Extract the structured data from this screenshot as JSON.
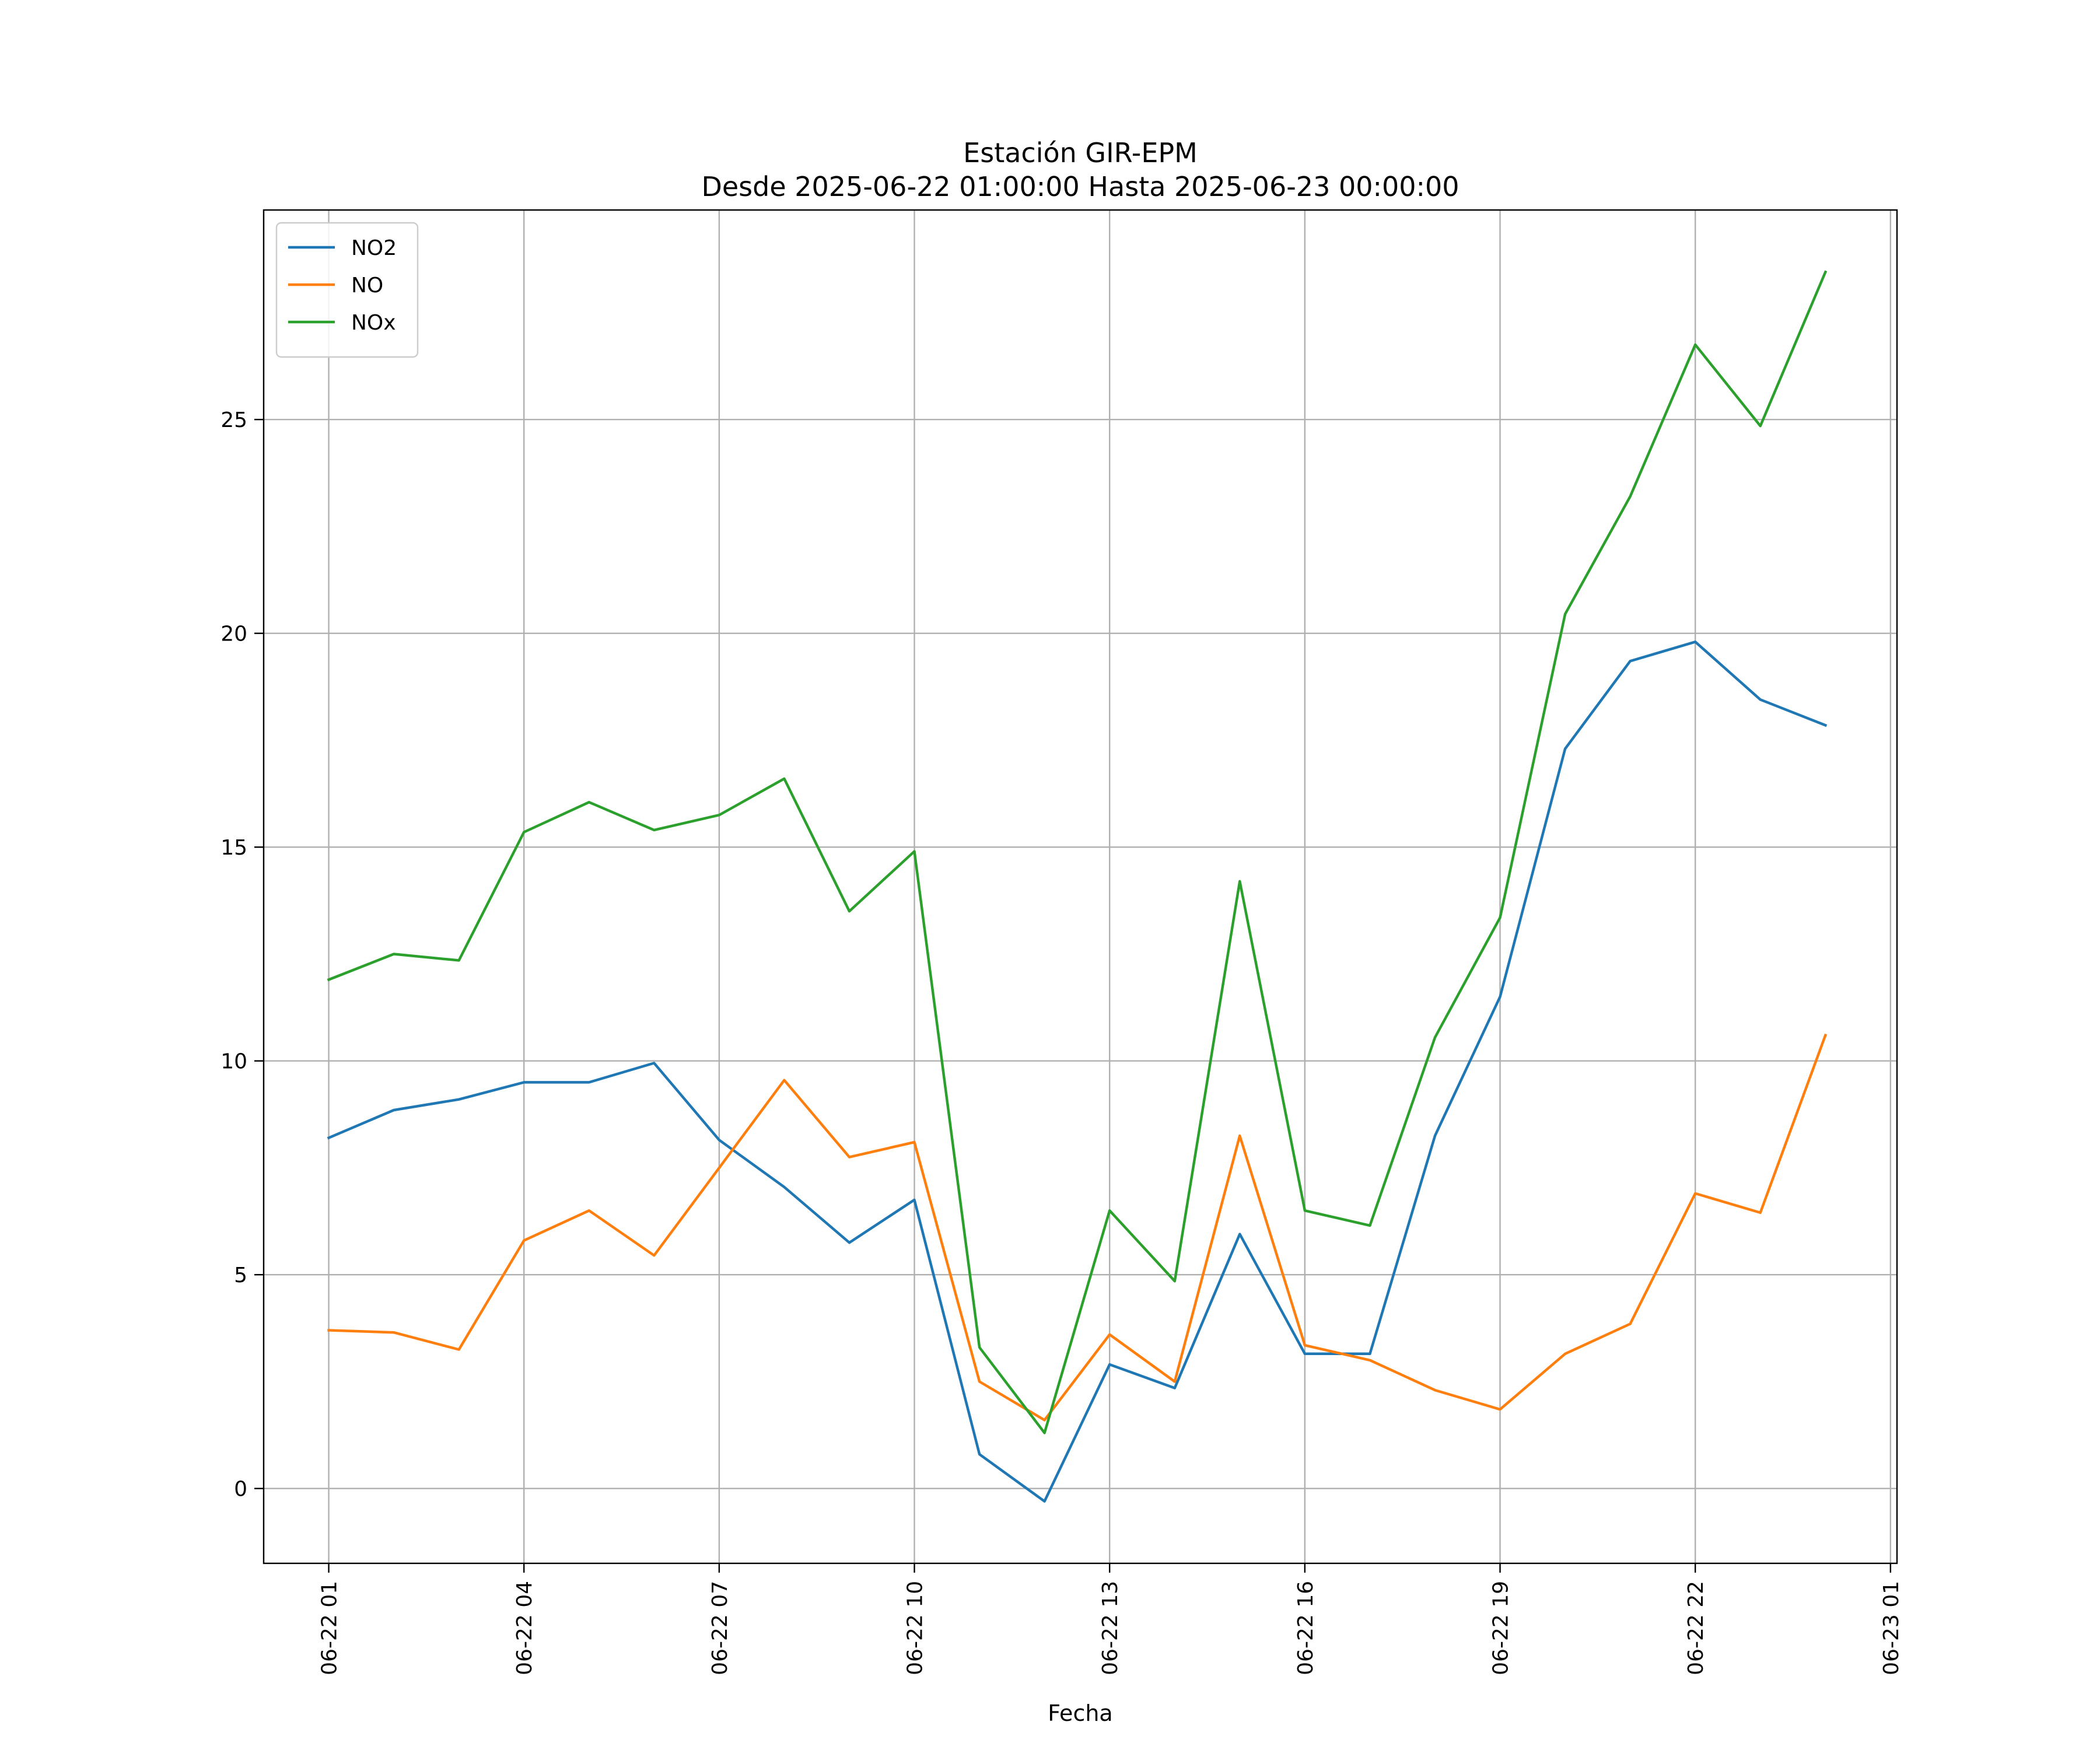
{
  "chart_data": {
    "type": "line",
    "title": "Estación GIR-EPM",
    "subtitle": "Desde 2025-06-22 01:00:00 Hasta 2025-06-23 00:00:00",
    "xlabel": "Fecha",
    "ylabel": "",
    "x": [
      "2025-06-22 01:00",
      "2025-06-22 02:00",
      "2025-06-22 03:00",
      "2025-06-22 04:00",
      "2025-06-22 05:00",
      "2025-06-22 06:00",
      "2025-06-22 07:00",
      "2025-06-22 08:00",
      "2025-06-22 09:00",
      "2025-06-22 10:00",
      "2025-06-22 11:00",
      "2025-06-22 12:00",
      "2025-06-22 13:00",
      "2025-06-22 14:00",
      "2025-06-22 15:00",
      "2025-06-22 16:00",
      "2025-06-22 17:00",
      "2025-06-22 18:00",
      "2025-06-22 19:00",
      "2025-06-22 20:00",
      "2025-06-22 21:00",
      "2025-06-22 22:00",
      "2025-06-22 23:00",
      "2025-06-23 00:00"
    ],
    "xlim": [
      "2025-06-22 00:00",
      "2025-06-23 01:06"
    ],
    "ylim": [
      -1.75,
      29.9
    ],
    "xticks": [
      {
        "label": "06-22 01",
        "value": "2025-06-22 01:00"
      },
      {
        "label": "06-22 04",
        "value": "2025-06-22 04:00"
      },
      {
        "label": "06-22 07",
        "value": "2025-06-22 07:00"
      },
      {
        "label": "06-22 10",
        "value": "2025-06-22 10:00"
      },
      {
        "label": "06-22 13",
        "value": "2025-06-22 13:00"
      },
      {
        "label": "06-22 16",
        "value": "2025-06-22 16:00"
      },
      {
        "label": "06-22 19",
        "value": "2025-06-22 19:00"
      },
      {
        "label": "06-22 22",
        "value": "2025-06-22 22:00"
      },
      {
        "label": "06-23 01",
        "value": "2025-06-23 01:00"
      }
    ],
    "yticks": [
      0,
      5,
      10,
      15,
      20,
      25
    ],
    "grid": true,
    "legend_position": "top-left",
    "series": [
      {
        "name": "NO2",
        "color": "#1f77b4",
        "values": [
          8.2,
          8.85,
          9.1,
          9.5,
          9.5,
          9.95,
          8.15,
          7.05,
          5.75,
          6.75,
          0.8,
          -0.3,
          2.9,
          2.35,
          5.95,
          3.15,
          3.15,
          8.25,
          11.5,
          17.3,
          19.35,
          19.8,
          18.45,
          17.85
        ]
      },
      {
        "name": "NO",
        "color": "#ff7f0e",
        "values": [
          3.7,
          3.65,
          3.25,
          5.8,
          6.5,
          5.45,
          7.5,
          9.55,
          7.75,
          8.1,
          2.5,
          1.6,
          3.6,
          2.5,
          8.25,
          3.35,
          3.0,
          2.3,
          1.85,
          3.15,
          3.85,
          6.9,
          6.45,
          10.6
        ]
      },
      {
        "name": "NOx",
        "color": "#2ca02c",
        "values": [
          11.9,
          12.5,
          12.35,
          15.35,
          16.05,
          15.4,
          15.75,
          16.6,
          13.5,
          14.9,
          3.3,
          1.3,
          6.5,
          4.85,
          14.2,
          6.5,
          6.15,
          10.55,
          13.35,
          20.45,
          23.2,
          26.75,
          24.85,
          28.45
        ]
      }
    ]
  }
}
